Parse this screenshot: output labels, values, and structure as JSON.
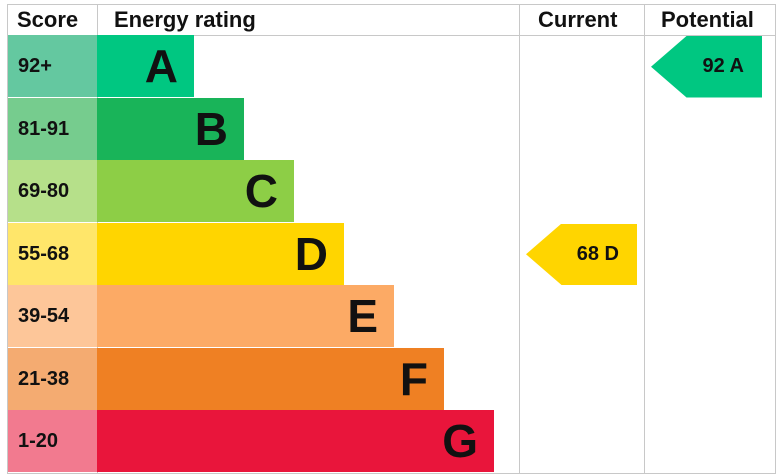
{
  "headers": {
    "score": "Score",
    "rating": "Energy rating",
    "current": "Current",
    "potential": "Potential"
  },
  "chart_data": {
    "type": "bar",
    "bands": [
      {
        "range": "92+",
        "letter": "A",
        "color": "#00c781",
        "score_color": "#64c8a0"
      },
      {
        "range": "81-91",
        "letter": "B",
        "color": "#19b459",
        "score_color": "#76cc8e"
      },
      {
        "range": "69-80",
        "letter": "C",
        "color": "#8dce46",
        "score_color": "#b6e08a"
      },
      {
        "range": "55-68",
        "letter": "D",
        "color": "#ffd500",
        "score_color": "#ffe66a"
      },
      {
        "range": "39-54",
        "letter": "E",
        "color": "#fcaa65",
        "score_color": "#fdc699"
      },
      {
        "range": "21-38",
        "letter": "F",
        "color": "#ef8023",
        "score_color": "#f4ab71"
      },
      {
        "range": "1-20",
        "letter": "G",
        "color": "#e9153b",
        "score_color": "#f27a8f"
      }
    ],
    "current": {
      "value": 68,
      "letter": "D",
      "label": "68  D"
    },
    "potential": {
      "value": 92,
      "letter": "A",
      "label": "92  A"
    }
  }
}
